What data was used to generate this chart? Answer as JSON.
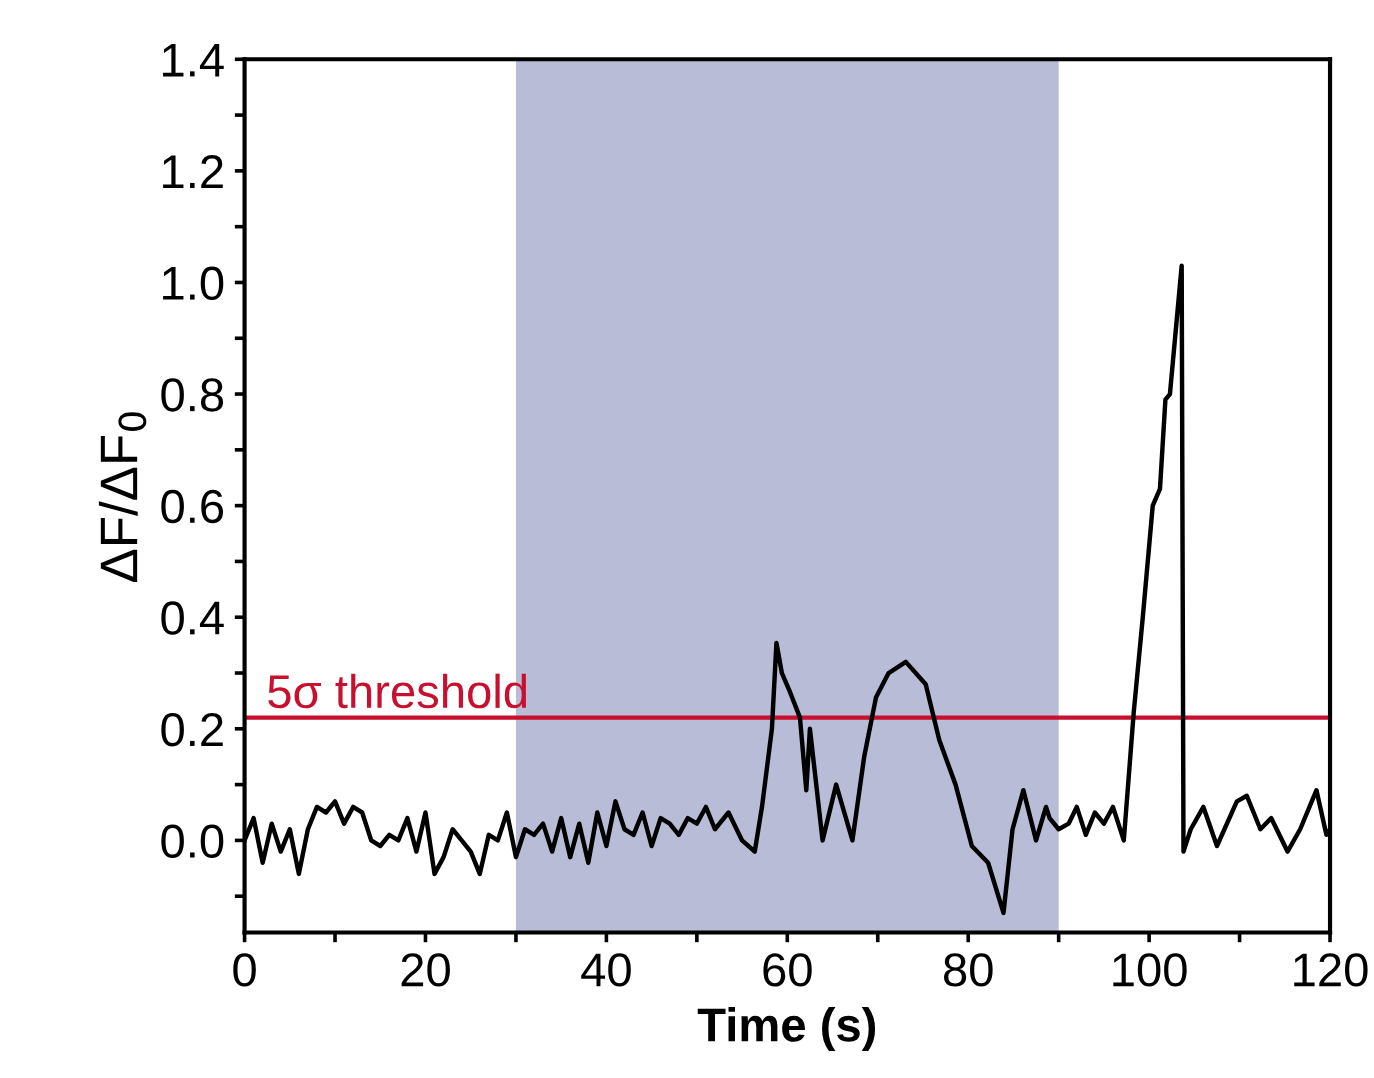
{
  "chart_data": {
    "type": "line",
    "xlabel": "Time (s)",
    "ylabel": "ΔF/ΔF$_{0}$",
    "xlim": [
      0,
      120
    ],
    "ylim": [
      -0.165,
      1.4
    ],
    "xticks": [
      0,
      {
        "value": 10,
        "label": null
      },
      20,
      {
        "value": 30,
        "label": null
      },
      40,
      {
        "value": 50,
        "label": null
      },
      60,
      {
        "value": 70,
        "label": null
      },
      80,
      {
        "value": 90,
        "label": null
      },
      100,
      {
        "value": 110,
        "label": null
      },
      120
    ],
    "yticks": [
      {
        "value": -0.1,
        "label": null
      },
      {
        "value": 0,
        "label": "0.0"
      },
      {
        "value": 0.1,
        "label": null
      },
      {
        "value": 0.2,
        "label": "0.2"
      },
      {
        "value": 0.3,
        "label": null
      },
      {
        "value": 0.4,
        "label": "0.4"
      },
      {
        "value": 0.5,
        "label": null
      },
      {
        "value": 0.6,
        "label": "0.6"
      },
      {
        "value": 0.7,
        "label": null
      },
      {
        "value": 0.8,
        "label": "0.8"
      },
      {
        "value": 0.9,
        "label": null
      },
      {
        "value": 1.0,
        "label": "1.0"
      },
      {
        "value": 1.1,
        "label": null
      },
      {
        "value": 1.2,
        "label": "1.2"
      },
      {
        "value": 1.3,
        "label": null
      },
      {
        "value": 1.4,
        "label": "1.4"
      }
    ],
    "grid": false,
    "legend": false,
    "marker": "none",
    "line_style": "solid",
    "ref_lines": [
      {
        "axis": "y",
        "value": 0.22,
        "label": "5σ threshold",
        "color": "#c8102e",
        "line_style": "solid"
      }
    ],
    "bands": [
      {
        "axis": "x",
        "from": 30,
        "to": 90,
        "label": null,
        "color": "#b9bcd6"
      }
    ],
    "series": [
      {
        "color": "#000000",
        "x": [
          0,
          1,
          2,
          3,
          4,
          5,
          6,
          7,
          8,
          9,
          10,
          11,
          12,
          13,
          14,
          15,
          16,
          17,
          18,
          19,
          20,
          21,
          22,
          23,
          24,
          25,
          26,
          27,
          28,
          29,
          30,
          31,
          32,
          33,
          34,
          35,
          36,
          37,
          38,
          39,
          40,
          41,
          42,
          43,
          44,
          45,
          46,
          47,
          48,
          49,
          50,
          51,
          52,
          53.5,
          55,
          56.4,
          57.2,
          58.3,
          58.8,
          59.4,
          60.2,
          61.4,
          62.1,
          62.5,
          63.9,
          65.4,
          67.2,
          68.5,
          69.8,
          71.2,
          73.1,
          75.3,
          76.8,
          78.6,
          80.4,
          82.2,
          83.9,
          84.9,
          86.1,
          87.5,
          88.6,
          89,
          90,
          91.1,
          92,
          93,
          94,
          95,
          96,
          97.2,
          98.3,
          99.3,
          100.4,
          101.2,
          101.8,
          102.3,
          103.6,
          103.8,
          104.6,
          106.0,
          107.5,
          109.7,
          110.8,
          112.3,
          113.5,
          115.3,
          116.7,
          118.5,
          119.6,
          120
        ],
        "values": [
          0.0,
          0.04,
          -0.04,
          0.03,
          -0.02,
          0.02,
          -0.06,
          0.02,
          0.06,
          0.05,
          0.07,
          0.03,
          0.06,
          0.05,
          0.0,
          -0.01,
          0.01,
          0.0,
          0.04,
          -0.02,
          0.05,
          -0.06,
          -0.03,
          0.02,
          0.0,
          -0.02,
          -0.06,
          0.01,
          0.0,
          0.05,
          -0.03,
          0.02,
          0.01,
          0.03,
          -0.02,
          0.04,
          -0.03,
          0.03,
          -0.04,
          0.05,
          -0.01,
          0.07,
          0.02,
          0.01,
          0.05,
          -0.01,
          0.04,
          0.03,
          0.01,
          0.04,
          0.03,
          0.06,
          0.02,
          0.05,
          0.0,
          -0.02,
          0.06,
          0.2,
          0.354,
          0.3,
          0.27,
          0.22,
          0.09,
          0.2,
          0.0,
          0.1,
          0.0,
          0.15,
          0.256,
          0.3,
          0.32,
          0.28,
          0.18,
          0.1,
          -0.01,
          -0.04,
          -0.13,
          0.02,
          0.09,
          0.0,
          0.06,
          0.04,
          0.02,
          0.03,
          0.06,
          0.01,
          0.05,
          0.03,
          0.06,
          0.0,
          0.23,
          0.4,
          0.6,
          0.63,
          0.79,
          0.8,
          1.03,
          -0.02,
          0.02,
          0.06,
          -0.01,
          0.07,
          0.08,
          0.02,
          0.04,
          -0.02,
          0.02,
          0.09,
          0.01,
          0.02
        ]
      }
    ]
  }
}
